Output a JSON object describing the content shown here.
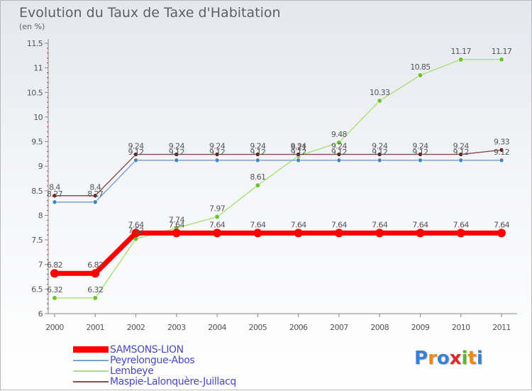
{
  "title": "Evolution du Taux de Taxe d'Habitation",
  "unit_label": "(en %)",
  "logo_letters": [
    {
      "char": "P",
      "color": "#3a7fd0"
    },
    {
      "char": "r",
      "color": "#e88a1e"
    },
    {
      "char": "o",
      "color": "#3a7fd0"
    },
    {
      "char": "x",
      "color": "#e02a2a"
    },
    {
      "char": "i",
      "color": "#5ab82e"
    },
    {
      "char": "t",
      "color": "#e88a1e"
    },
    {
      "char": "i",
      "color": "#3a7fd0"
    }
  ],
  "chart_data": {
    "type": "line",
    "title": "Evolution du Taux de Taxe d'Habitation",
    "ylabel": "(en %)",
    "xlabel": "",
    "x": [
      "2000",
      "2001",
      "2002",
      "2003",
      "2004",
      "2005",
      "2006",
      "2007",
      "2008",
      "2009",
      "2010",
      "2011"
    ],
    "ylim": [
      6,
      11.5
    ],
    "yticks": [
      "6",
      "6.5",
      "7",
      "7.5",
      "8",
      "8.5",
      "9",
      "9.5",
      "10",
      "10.5",
      "11",
      "11.5"
    ],
    "grid": false,
    "legend_position": "bottom-left",
    "series": [
      {
        "name": "SAMSONS-LION",
        "color": "#ff0000",
        "point_color": "#ff0000",
        "values": [
          6.82,
          6.82,
          7.64,
          7.64,
          7.64,
          7.64,
          7.64,
          7.64,
          7.64,
          7.64,
          7.64,
          7.64
        ],
        "labels": [
          "6.82",
          "6.82",
          "7.64",
          "7.64",
          "7.64",
          "7.64",
          "7.64",
          "7.64",
          "7.64",
          "7.64",
          "7.64",
          "7.64"
        ]
      },
      {
        "name": "Peyrelongue-Abos",
        "color": "#7aa3c8",
        "point_color": "#3d86c6",
        "values": [
          8.27,
          8.27,
          9.12,
          9.12,
          9.12,
          9.12,
          9.12,
          9.12,
          9.12,
          9.12,
          9.12,
          9.12
        ],
        "labels": [
          "8.27",
          "8.27",
          "9.12",
          "9.12",
          "9.12",
          "9.12",
          "9.12",
          "9.12",
          "9.12",
          "9.12",
          "9.12",
          "9.12"
        ]
      },
      {
        "name": "Lembeye",
        "color": "#a9e07a",
        "point_color": "#6cc42c",
        "values": [
          6.32,
          6.32,
          7.52,
          7.74,
          7.97,
          8.61,
          9.21,
          9.48,
          10.33,
          10.85,
          11.17,
          11.17
        ],
        "labels": [
          "6.32",
          "6.32",
          "7.52",
          "7.74",
          "7.97",
          "8.61",
          "9.21",
          "9.48",
          "10.33",
          "10.85",
          "11.17",
          "11.17"
        ]
      },
      {
        "name": "Maspie-Lalonquère-Juillacq",
        "color": "#8a4a4a",
        "point_color": "#6b1a1a",
        "values": [
          8.4,
          8.4,
          9.24,
          9.24,
          9.24,
          9.24,
          9.24,
          9.24,
          9.24,
          9.24,
          9.24,
          9.33
        ],
        "labels": [
          "8.4",
          "8.4",
          "9.24",
          "9.24",
          "9.24",
          "9.24",
          "9.24",
          "9.24",
          "9.24",
          "9.24",
          "9.24",
          "9.33"
        ]
      }
    ]
  }
}
